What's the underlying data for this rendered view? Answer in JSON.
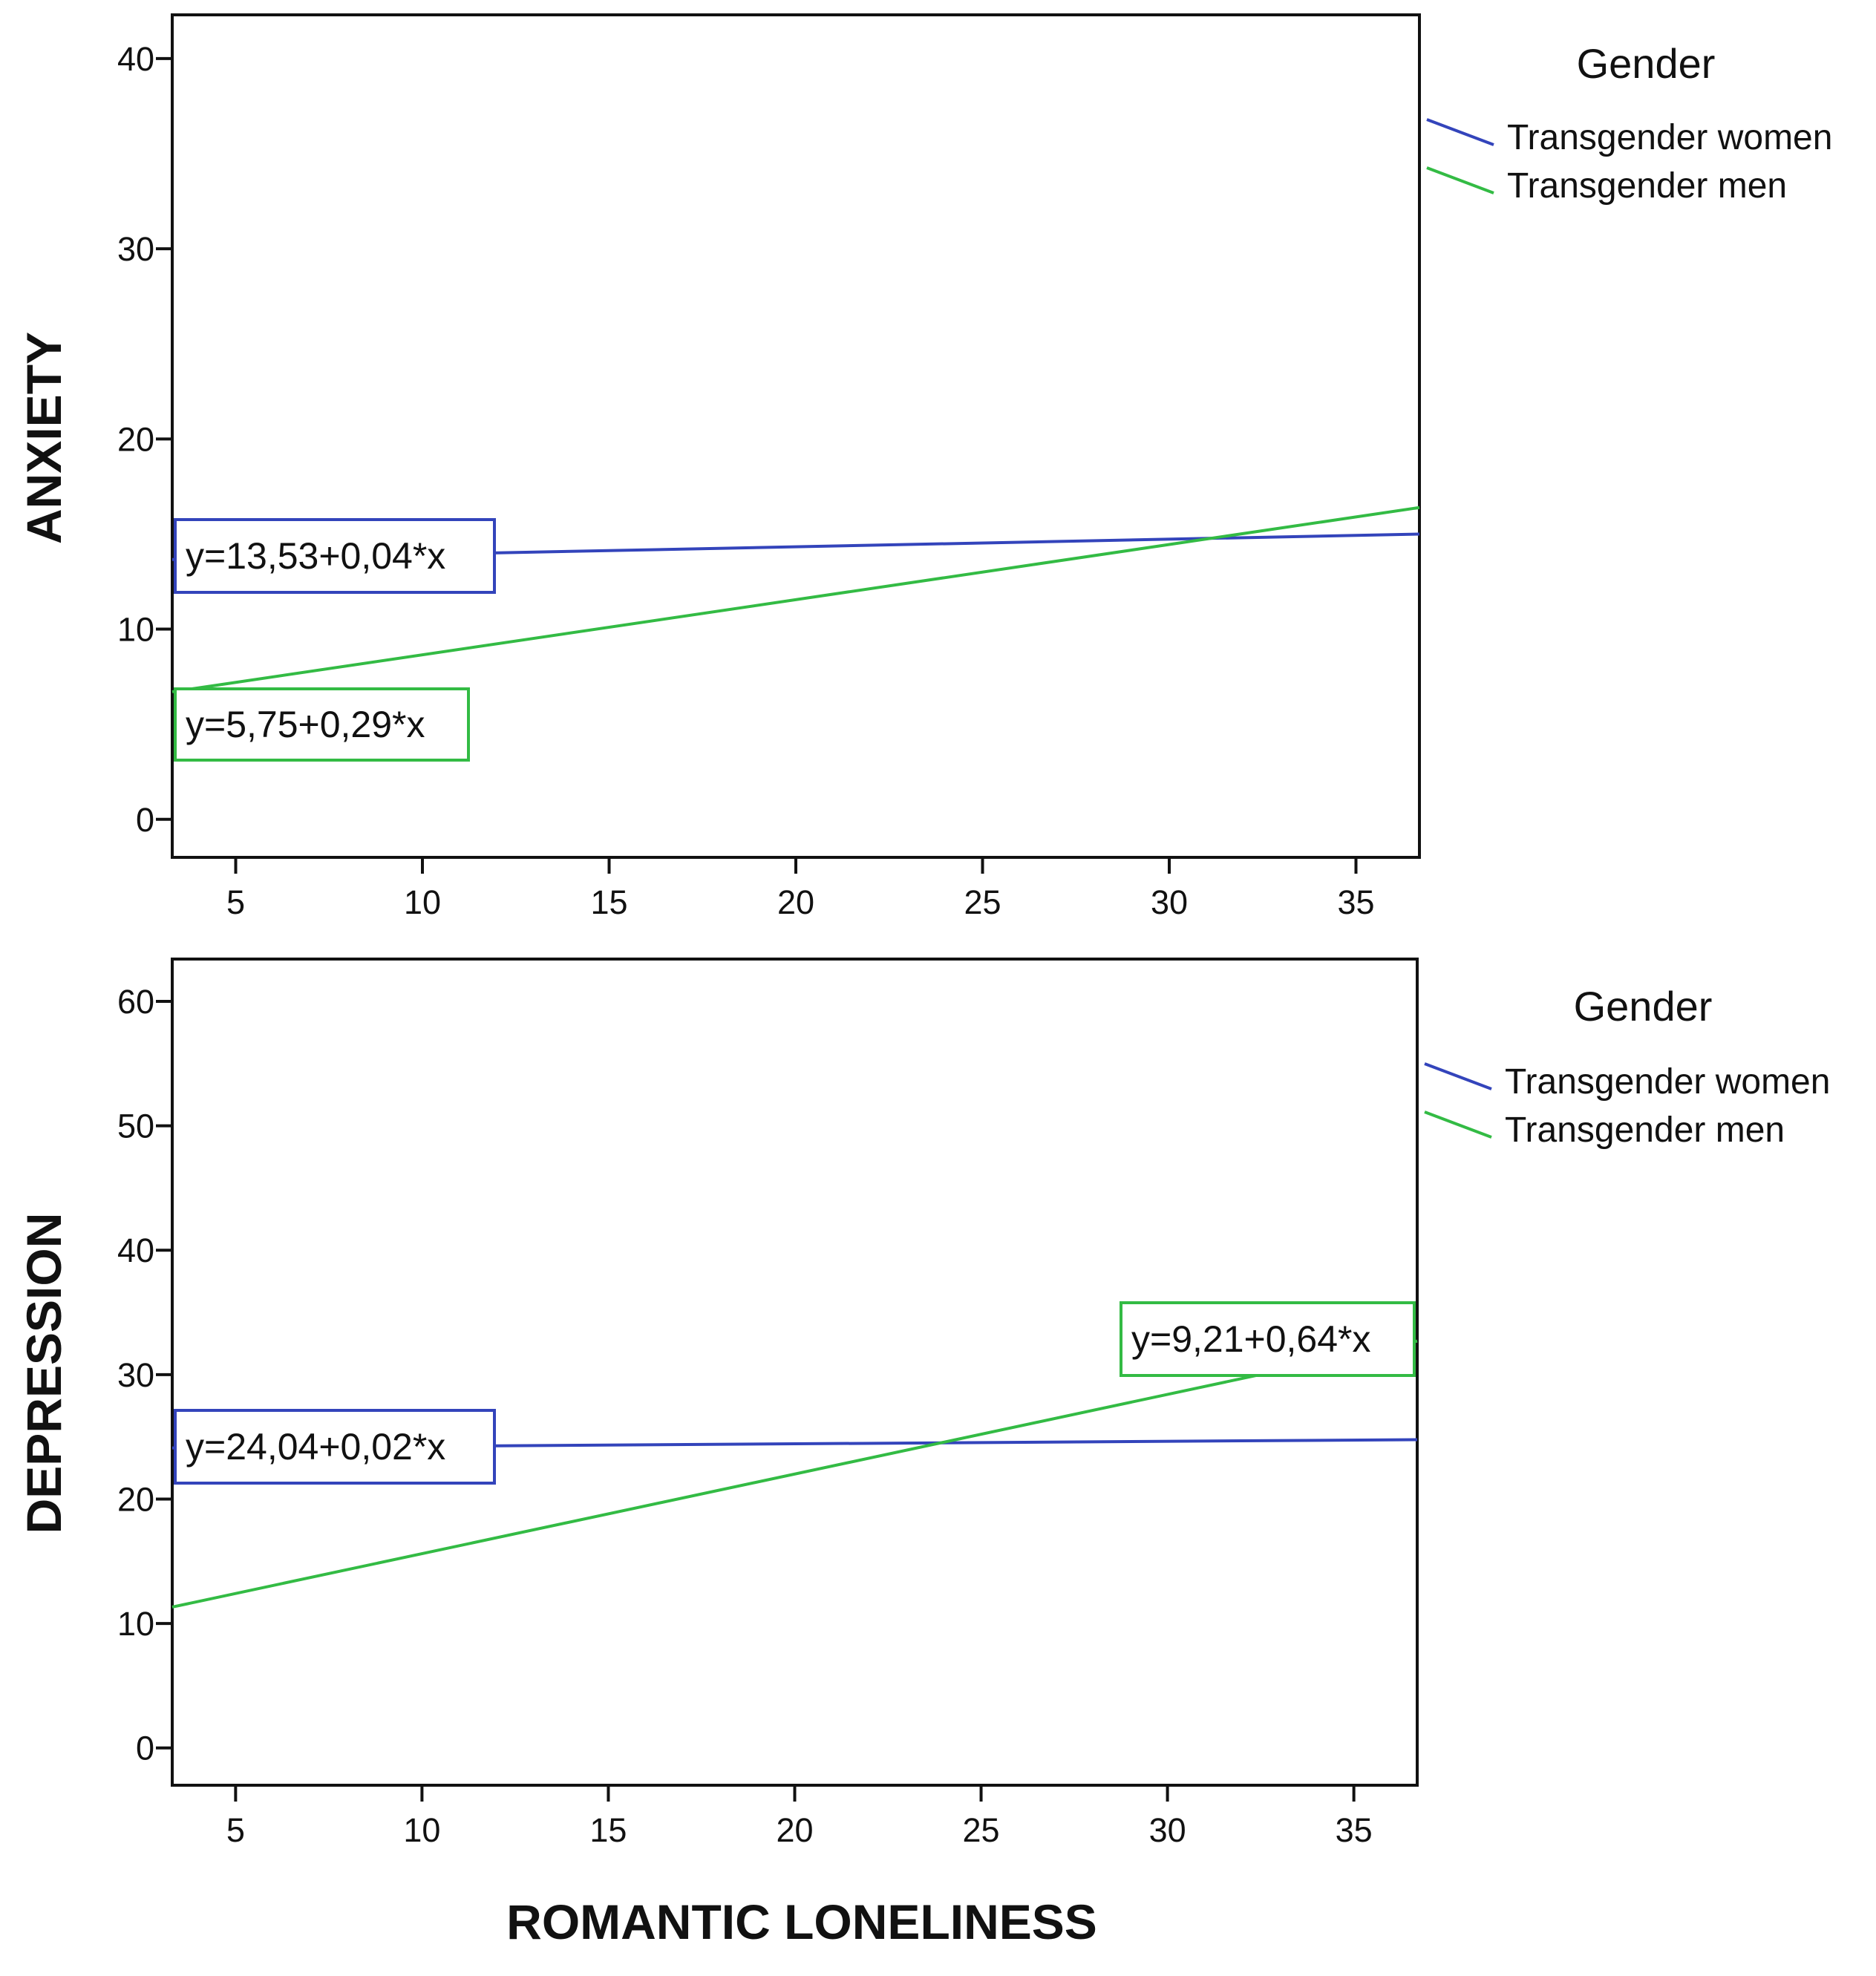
{
  "colors": {
    "women": "#3344bb",
    "men": "#33bb44",
    "frame": "#111111"
  },
  "chart_data": [
    {
      "type": "line",
      "title": "",
      "xlabel": "",
      "ylabel": "ANXIETY",
      "xlim": [
        3.3,
        36.7
      ],
      "ylim": [
        -2,
        42.3
      ],
      "xticks": [
        5,
        10,
        15,
        20,
        25,
        30,
        35
      ],
      "yticks": [
        0,
        10,
        20,
        30,
        40
      ],
      "legend_title": "Gender",
      "series": [
        {
          "name": "Transgender women",
          "color_key": "women",
          "intercept": 13.53,
          "slope": 0.04,
          "x": [
            3.3,
            36.7
          ],
          "equation": "y=13,53+0,04*x"
        },
        {
          "name": "Transgender men",
          "color_key": "men",
          "intercept": 5.75,
          "slope": 0.29,
          "x": [
            3.3,
            36.7
          ],
          "equation": "y=5,75+0,29*x"
        }
      ]
    },
    {
      "type": "line",
      "title": "",
      "xlabel": "ROMANTIC LONELINESS",
      "ylabel": "DEPRESSION",
      "xlim": [
        3.3,
        36.7
      ],
      "ylim": [
        -3,
        63.4
      ],
      "xticks": [
        5,
        10,
        15,
        20,
        25,
        30,
        35
      ],
      "yticks": [
        0,
        10,
        20,
        30,
        40,
        50,
        60
      ],
      "legend_title": "Gender",
      "series": [
        {
          "name": "Transgender women",
          "color_key": "women",
          "intercept": 24.04,
          "slope": 0.02,
          "x": [
            3.3,
            36.7
          ],
          "equation": "y=24,04+0,02*x"
        },
        {
          "name": "Transgender men",
          "color_key": "men",
          "intercept": 9.21,
          "slope": 0.64,
          "x": [
            3.3,
            36.7
          ],
          "equation": "y=9,21+0,64*x"
        }
      ]
    }
  ]
}
